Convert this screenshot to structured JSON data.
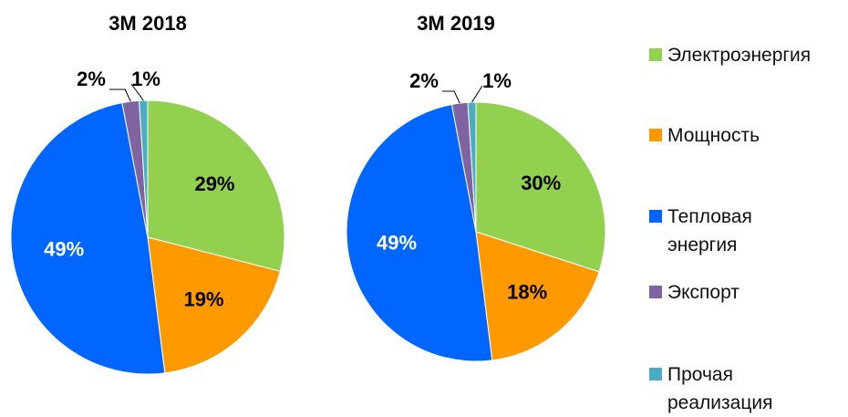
{
  "chart_data": [
    {
      "type": "pie",
      "title": "3M 2018",
      "categories": [
        "Электроэнергия",
        "Мощность",
        "Тепловая энергия",
        "Экспорт",
        "Прочая реализация"
      ],
      "values": [
        29,
        19,
        49,
        2,
        1
      ],
      "value_labels": [
        "29%",
        "19%",
        "49%",
        "2%",
        "1%"
      ],
      "colors": [
        "#92d050",
        "#ff9900",
        "#0066ff",
        "#8064a2",
        "#4bacc6"
      ]
    },
    {
      "type": "pie",
      "title": "3M 2019",
      "categories": [
        "Электроэнергия",
        "Мощность",
        "Тепловая энергия",
        "Экспорт",
        "Прочая реализация"
      ],
      "values": [
        30,
        18,
        49,
        2,
        1
      ],
      "value_labels": [
        "30%",
        "18%",
        "49%",
        "2%",
        "1%"
      ],
      "colors": [
        "#92d050",
        "#ff9900",
        "#0066ff",
        "#8064a2",
        "#4bacc6"
      ]
    }
  ]
}
